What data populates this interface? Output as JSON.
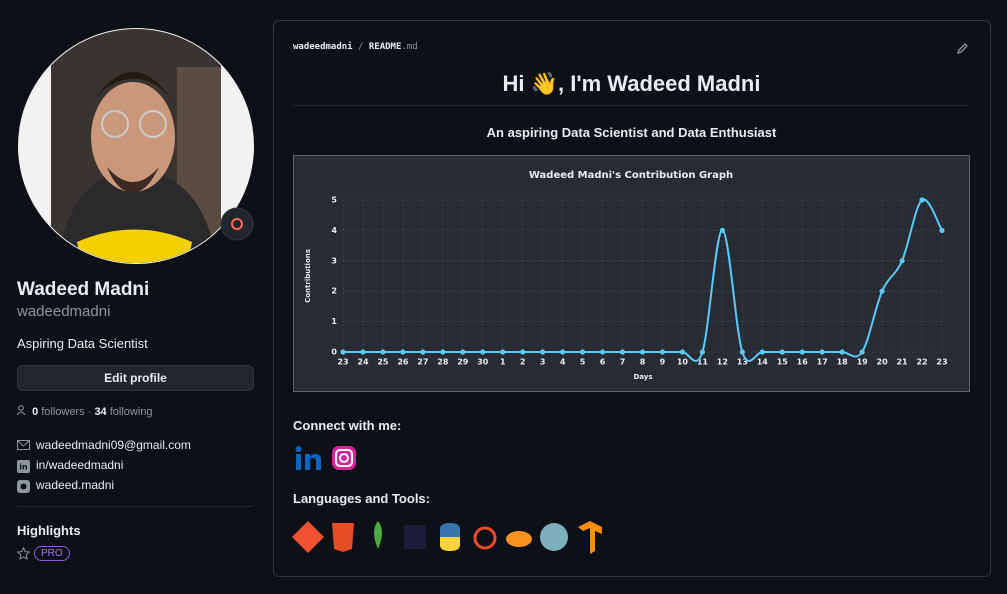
{
  "sidebar": {
    "name": "Wadeed Madni",
    "username": "wadeedmadni",
    "bio": "Aspiring Data Scientist",
    "edit_button": "Edit profile",
    "followers_count": "0",
    "followers_label": "followers ·",
    "following_count": "34",
    "following_label": "following",
    "links": [
      "wadeedmadni09@gmail.com",
      "in/wadeedmadni",
      "wadeed.madni"
    ],
    "highlights_title": "Highlights",
    "badge": "PRO"
  },
  "readme": {
    "path_user": "wadeedmadni",
    "path_sep": "/",
    "path_file": "README",
    "path_ext": ".md",
    "title": "Hi 👋, I'm Wadeed Madni",
    "subtitle": "An aspiring Data Scientist and Data Enthusiast",
    "chart": {
      "type": "line",
      "title": "Wadeed Madni's Contribution Graph",
      "x_label": "Days",
      "y_label": "Contributions",
      "categories": [
        "23",
        "24",
        "25",
        "26",
        "27",
        "28",
        "29",
        "30",
        "1",
        "2",
        "3",
        "4",
        "5",
        "6",
        "7",
        "8",
        "9",
        "10",
        "11",
        "12",
        "13",
        "14",
        "15",
        "16",
        "17",
        "18",
        "19",
        "20",
        "21",
        "22",
        "23"
      ],
      "values": [
        0,
        0,
        0,
        0,
        0,
        0,
        0,
        0,
        0,
        0,
        0,
        0,
        0,
        0,
        0,
        0,
        0,
        0,
        0,
        4,
        0,
        0,
        0,
        0,
        0,
        0,
        0,
        2,
        3,
        5,
        4
      ],
      "color": "#5bc9f5",
      "ylim": [
        0,
        5
      ],
      "yticks": [
        0,
        1,
        2,
        3,
        4,
        5
      ],
      "grid": true
    },
    "connect_title": "Connect with me:",
    "tools_title": "Languages and Tools:"
  }
}
